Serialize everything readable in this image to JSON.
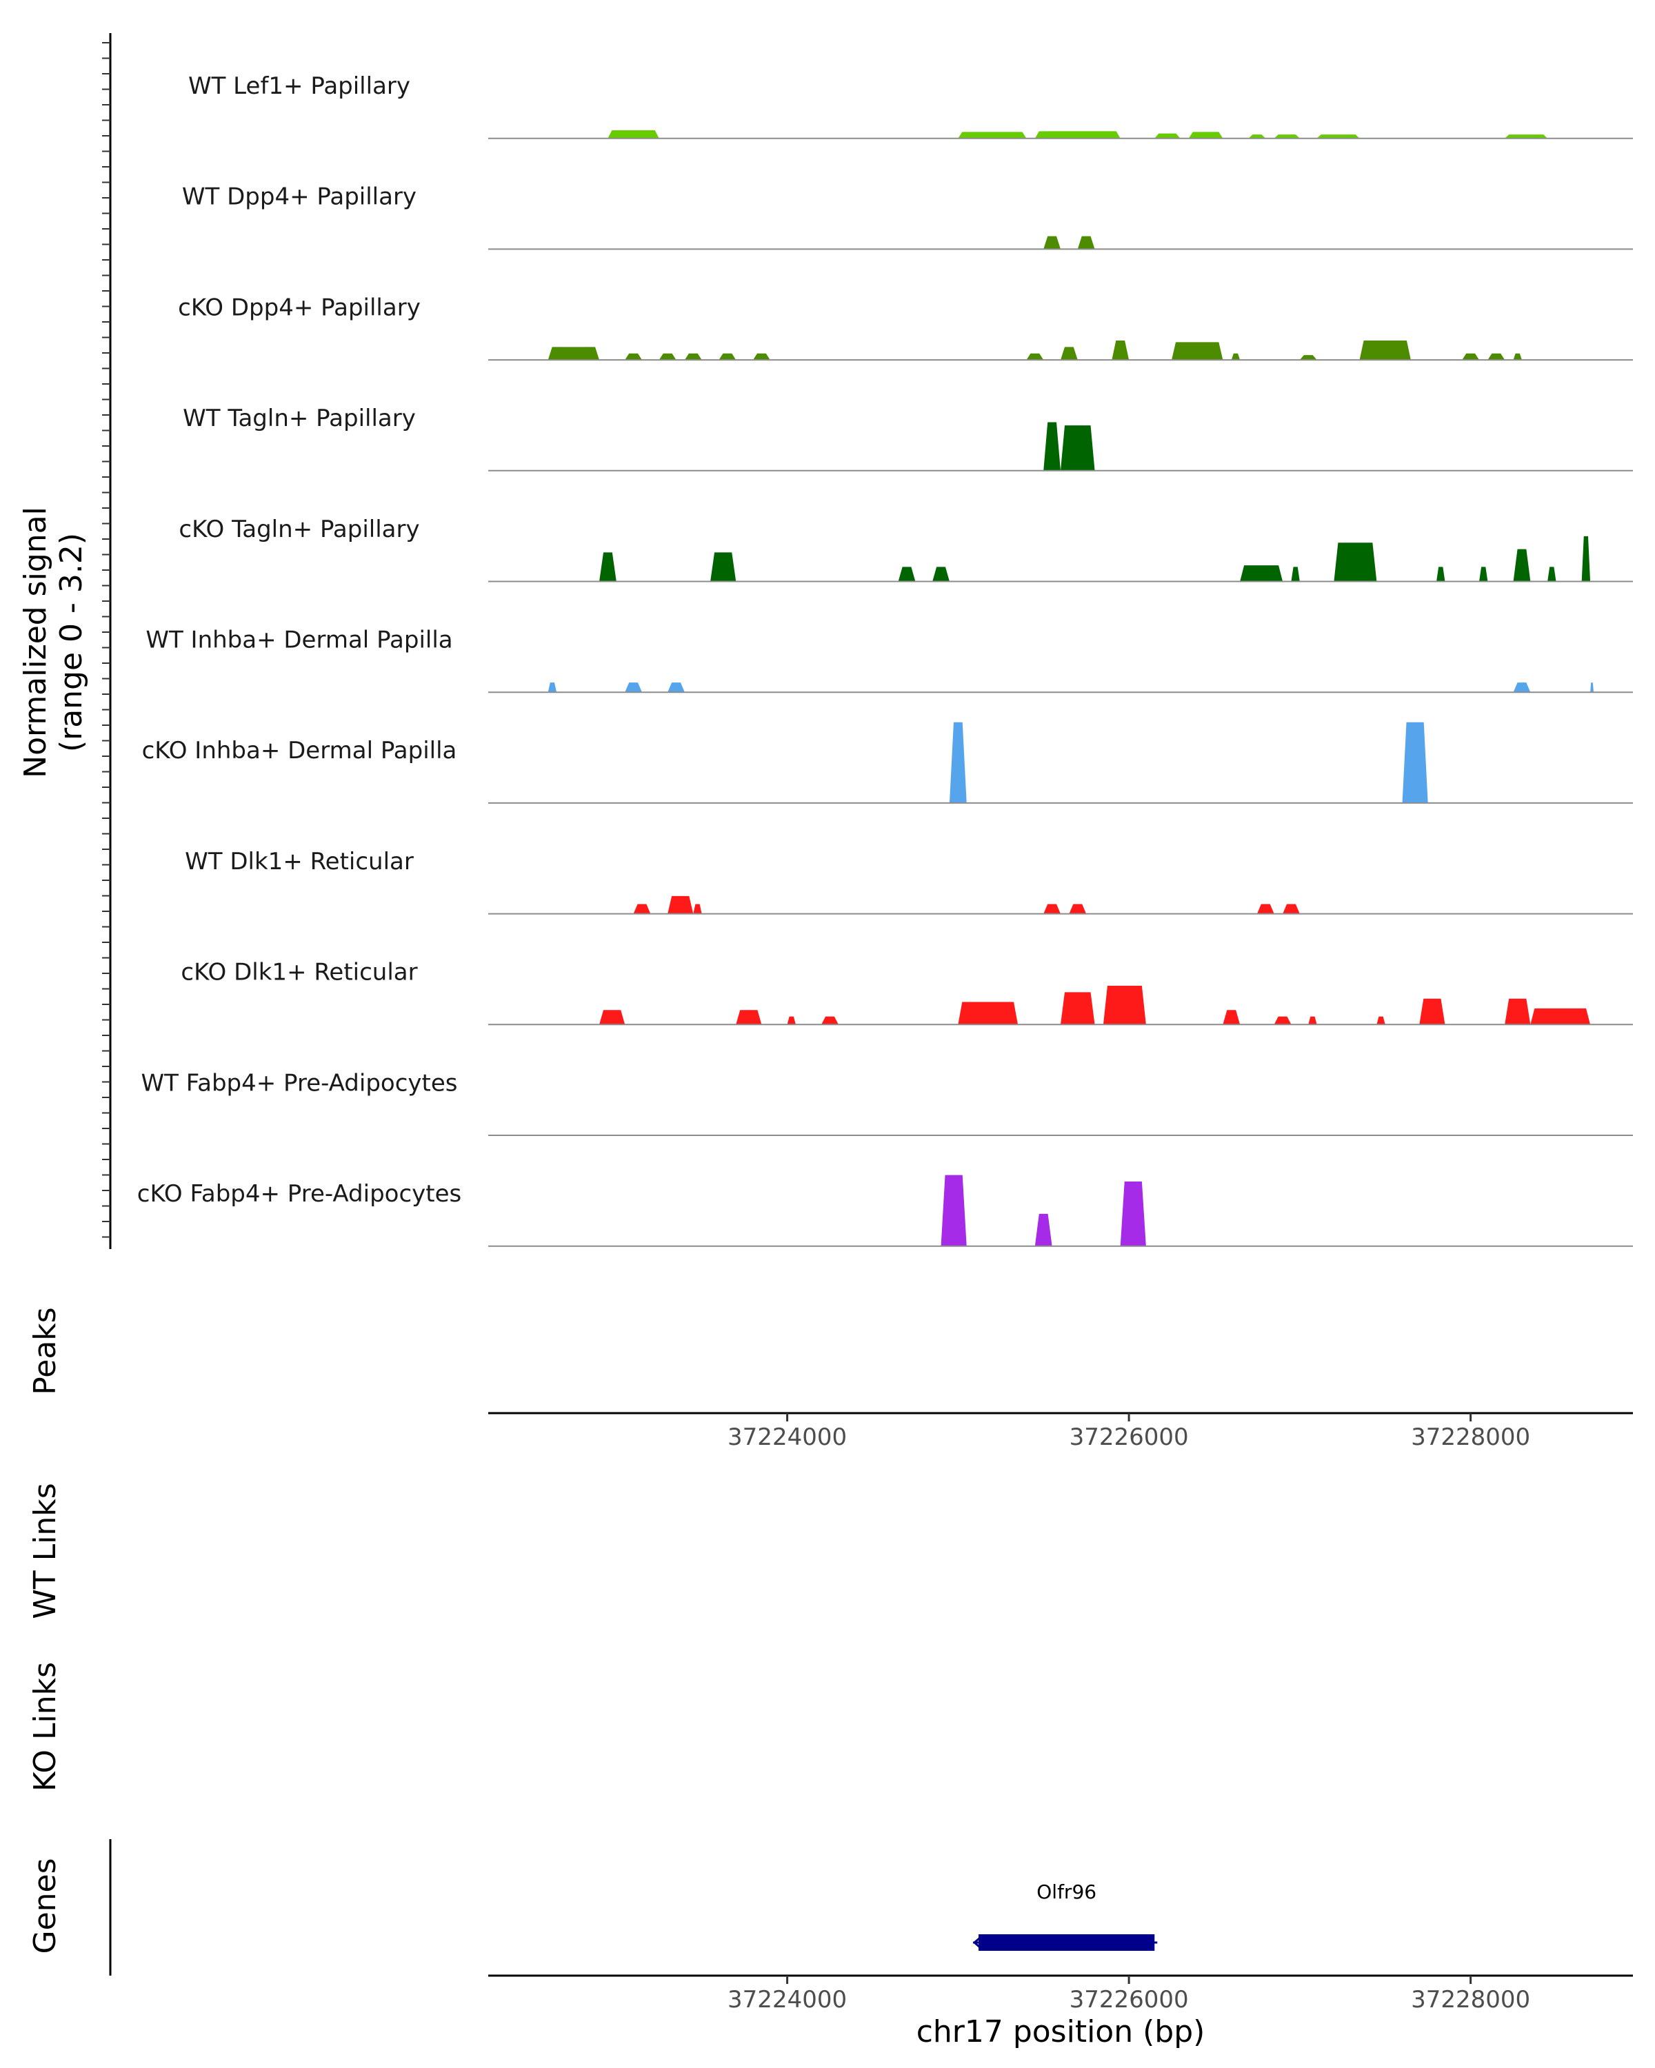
{
  "chart_data": {
    "type": "area",
    "chromosome": "chr17",
    "xlabel": "chr17 position (bp)",
    "xlim": [
      37222250,
      37228950
    ],
    "xticks": [
      37224000,
      37226000,
      37228000
    ],
    "xtick_labels": [
      "37224000",
      "37226000",
      "37228000"
    ],
    "signal_ylabel": [
      "Normalized signal",
      "(range 0 - 3.2)"
    ],
    "signal_ylim": [
      0,
      3.2
    ],
    "panel_labels": {
      "peaks": "Peaks",
      "wt_links": "WT Links",
      "ko_links": "KO Links",
      "genes": "Genes"
    },
    "tracks": [
      {
        "name": "WT Lef1+ Papillary",
        "color": "#66cc00",
        "regions": [
          {
            "start": 37222950,
            "end": 37223250,
            "height": 0.25
          },
          {
            "start": 37225000,
            "end": 37225400,
            "height": 0.2
          },
          {
            "start": 37225450,
            "end": 37225950,
            "height": 0.22
          },
          {
            "start": 37226150,
            "end": 37226300,
            "height": 0.15
          },
          {
            "start": 37226350,
            "end": 37226550,
            "height": 0.2
          },
          {
            "start": 37226700,
            "end": 37226800,
            "height": 0.12
          },
          {
            "start": 37226850,
            "end": 37227000,
            "height": 0.12
          },
          {
            "start": 37227100,
            "end": 37227350,
            "height": 0.12
          },
          {
            "start": 37228200,
            "end": 37228450,
            "height": 0.12
          }
        ]
      },
      {
        "name": "WT Dpp4+ Papillary",
        "color": "#4d8c00",
        "regions": [
          {
            "start": 37225500,
            "end": 37225600,
            "height": 0.4
          },
          {
            "start": 37225700,
            "end": 37225800,
            "height": 0.4
          }
        ]
      },
      {
        "name": "cKO Dpp4+ Papillary",
        "color": "#4d8c00",
        "regions": [
          {
            "start": 37222600,
            "end": 37222900,
            "height": 0.4
          },
          {
            "start": 37223050,
            "end": 37223150,
            "height": 0.2
          },
          {
            "start": 37223250,
            "end": 37223350,
            "height": 0.2
          },
          {
            "start": 37223400,
            "end": 37223500,
            "height": 0.2
          },
          {
            "start": 37223600,
            "end": 37223700,
            "height": 0.2
          },
          {
            "start": 37223800,
            "end": 37223900,
            "height": 0.2
          },
          {
            "start": 37225400,
            "end": 37225500,
            "height": 0.2
          },
          {
            "start": 37225600,
            "end": 37225700,
            "height": 0.4
          },
          {
            "start": 37225900,
            "end": 37226000,
            "height": 0.6
          },
          {
            "start": 37226250,
            "end": 37226550,
            "height": 0.55
          },
          {
            "start": 37226600,
            "end": 37226650,
            "height": 0.2
          },
          {
            "start": 37227000,
            "end": 37227100,
            "height": 0.15
          },
          {
            "start": 37227350,
            "end": 37227650,
            "height": 0.6
          },
          {
            "start": 37227950,
            "end": 37228050,
            "height": 0.2
          },
          {
            "start": 37228100,
            "end": 37228200,
            "height": 0.2
          },
          {
            "start": 37228250,
            "end": 37228300,
            "height": 0.2
          }
        ]
      },
      {
        "name": "WT Tagln+ Papillary",
        "color": "#006400",
        "regions": [
          {
            "start": 37225500,
            "end": 37225600,
            "height": 1.5
          },
          {
            "start": 37225600,
            "end": 37225800,
            "height": 1.4
          }
        ]
      },
      {
        "name": "cKO Tagln+ Papillary",
        "color": "#006400",
        "regions": [
          {
            "start": 37222900,
            "end": 37223000,
            "height": 0.9
          },
          {
            "start": 37223550,
            "end": 37223700,
            "height": 0.9
          },
          {
            "start": 37224650,
            "end": 37224750,
            "height": 0.45
          },
          {
            "start": 37224850,
            "end": 37224950,
            "height": 0.45
          },
          {
            "start": 37226650,
            "end": 37226900,
            "height": 0.5
          },
          {
            "start": 37226950,
            "end": 37227000,
            "height": 0.45
          },
          {
            "start": 37227200,
            "end": 37227450,
            "height": 1.2
          },
          {
            "start": 37227800,
            "end": 37227850,
            "height": 0.45
          },
          {
            "start": 37228050,
            "end": 37228100,
            "height": 0.45
          },
          {
            "start": 37228250,
            "end": 37228350,
            "height": 1.0
          },
          {
            "start": 37228450,
            "end": 37228500,
            "height": 0.45
          },
          {
            "start": 37228650,
            "end": 37228700,
            "height": 1.4
          }
        ]
      },
      {
        "name": "WT Inhba+ Dermal Papilla",
        "color": "#56a5ec",
        "regions": [
          {
            "start": 37222600,
            "end": 37222650,
            "height": 0.3
          },
          {
            "start": 37223050,
            "end": 37223150,
            "height": 0.3
          },
          {
            "start": 37223300,
            "end": 37223400,
            "height": 0.3
          },
          {
            "start": 37228250,
            "end": 37228350,
            "height": 0.3
          },
          {
            "start": 37228700,
            "end": 37228720,
            "height": 0.3
          }
        ]
      },
      {
        "name": "cKO Inhba+ Dermal Papilla",
        "color": "#56a5ec",
        "regions": [
          {
            "start": 37224950,
            "end": 37225050,
            "height": 2.5
          },
          {
            "start": 37227600,
            "end": 37227750,
            "height": 2.5
          }
        ]
      },
      {
        "name": "WT Dlk1+ Reticular",
        "color": "#ff1a1a",
        "regions": [
          {
            "start": 37223100,
            "end": 37223200,
            "height": 0.3
          },
          {
            "start": 37223300,
            "end": 37223450,
            "height": 0.55
          },
          {
            "start": 37223450,
            "end": 37223500,
            "height": 0.3
          },
          {
            "start": 37225500,
            "end": 37225600,
            "height": 0.3
          },
          {
            "start": 37225650,
            "end": 37225750,
            "height": 0.3
          },
          {
            "start": 37226750,
            "end": 37226850,
            "height": 0.3
          },
          {
            "start": 37226900,
            "end": 37227000,
            "height": 0.3
          }
        ]
      },
      {
        "name": "cKO Dlk1+ Reticular",
        "color": "#ff1a1a",
        "regions": [
          {
            "start": 37222900,
            "end": 37223050,
            "height": 0.45
          },
          {
            "start": 37223700,
            "end": 37223850,
            "height": 0.45
          },
          {
            "start": 37224000,
            "end": 37224050,
            "height": 0.25
          },
          {
            "start": 37224200,
            "end": 37224300,
            "height": 0.25
          },
          {
            "start": 37225000,
            "end": 37225350,
            "height": 0.7
          },
          {
            "start": 37225600,
            "end": 37225800,
            "height": 1.0
          },
          {
            "start": 37225850,
            "end": 37226100,
            "height": 1.2
          },
          {
            "start": 37226550,
            "end": 37226650,
            "height": 0.45
          },
          {
            "start": 37226850,
            "end": 37226950,
            "height": 0.25
          },
          {
            "start": 37227050,
            "end": 37227100,
            "height": 0.25
          },
          {
            "start": 37227450,
            "end": 37227500,
            "height": 0.25
          },
          {
            "start": 37227700,
            "end": 37227850,
            "height": 0.8
          },
          {
            "start": 37228200,
            "end": 37228350,
            "height": 0.8
          },
          {
            "start": 37228350,
            "end": 37228700,
            "height": 0.5
          }
        ]
      },
      {
        "name": "WT Fabp4+ Pre-Adipocytes",
        "color": "#a52be8",
        "regions": []
      },
      {
        "name": "cKO Fabp4+ Pre-Adipocytes",
        "color": "#a52be8",
        "regions": [
          {
            "start": 37224900,
            "end": 37225050,
            "height": 2.2
          },
          {
            "start": 37225450,
            "end": 37225550,
            "height": 1.0
          },
          {
            "start": 37225950,
            "end": 37226100,
            "height": 2.0
          }
        ]
      }
    ],
    "genes": [
      {
        "name": "Olfr96",
        "start": 37225120,
        "end": 37226150,
        "strand": "-",
        "color": "#00008b"
      }
    ]
  }
}
